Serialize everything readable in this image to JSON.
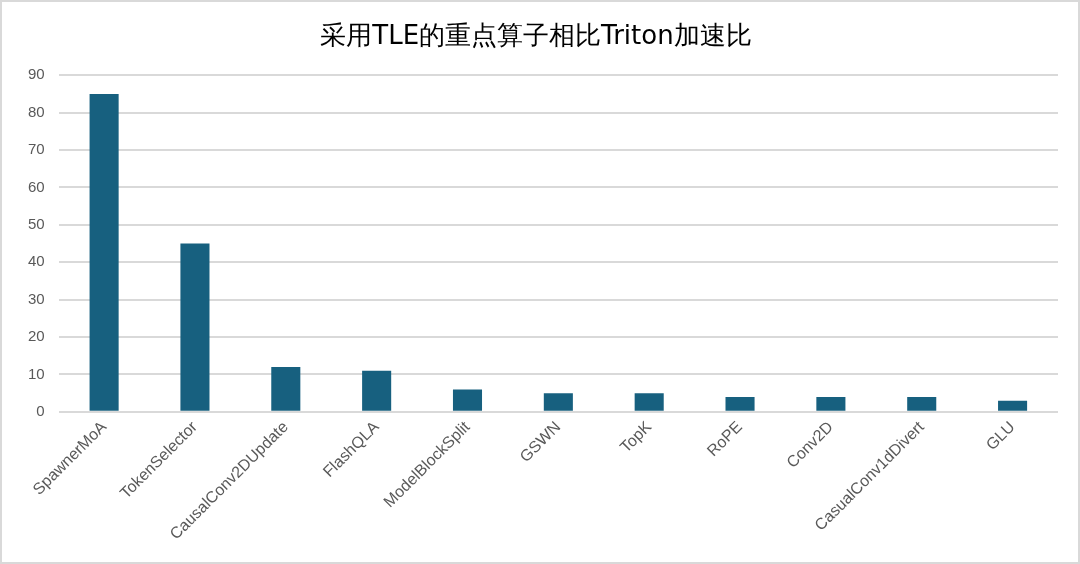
{
  "chart_data": {
    "type": "bar",
    "title": "采用TLE的重点算子相比Triton加速比",
    "categories": [
      "SpawnerMoA",
      "TokenSelector",
      "CausalConv2DUpdate",
      "FlashQLA",
      "ModelBlockSplit",
      "GSWN",
      "TopK",
      "RoPE",
      "Conv2D",
      "CasualConv1dDivert",
      "GLU"
    ],
    "values": [
      85,
      45,
      12,
      11,
      6,
      5,
      5,
      4,
      4,
      4,
      3
    ],
    "color": "#17607f",
    "ylim": [
      0,
      90
    ],
    "yticks": [
      0,
      10,
      20,
      30,
      40,
      50,
      60,
      70,
      80,
      90
    ],
    "grid": "y"
  }
}
